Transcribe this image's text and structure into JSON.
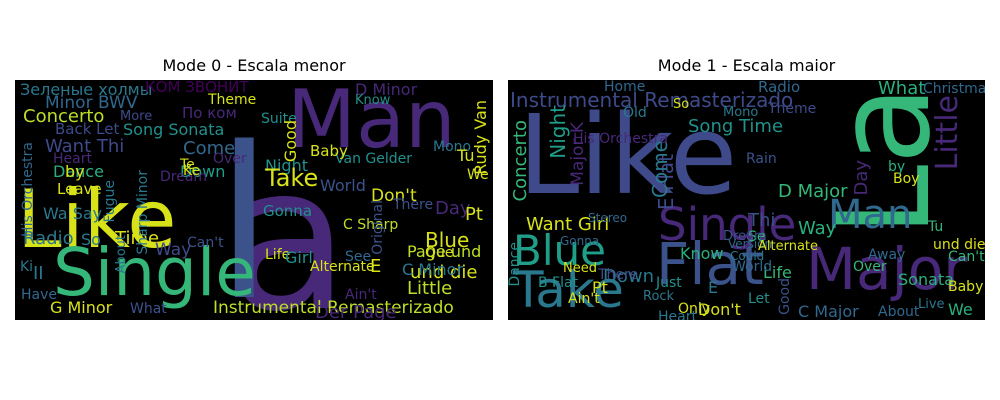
{
  "panels": [
    {
      "title": "Mode 0 - Escala menor",
      "words": [
        {
          "t": "a",
          "c": "#482878"
        },
        {
          "t": "Like",
          "c": "#d8e219"
        },
        {
          "t": "l",
          "c": "#3b528b"
        },
        {
          "t": "Single",
          "c": "#35b779"
        },
        {
          "t": "Man",
          "c": "#482878"
        },
        {
          "t": "Instrumental Remasterizado",
          "c": "#bddf26"
        },
        {
          "t": "Зеленые холмы",
          "c": "#2a788e"
        },
        {
          "t": "КОМ ЗВОНИТ",
          "c": "#44015a"
        },
        {
          "t": "Minor BWV",
          "c": "#31688e"
        },
        {
          "t": "Concerto",
          "c": "#bddf26"
        },
        {
          "t": "Song Sonata",
          "c": "#21918c"
        },
        {
          "t": "Want Thi",
          "c": "#3e4a89"
        },
        {
          "t": "Come",
          "c": "#31688e"
        },
        {
          "t": "Dance",
          "c": "#2ab07f"
        },
        {
          "t": "Down",
          "c": "#1f9e89"
        },
        {
          "t": "Theme",
          "c": "#d8e219"
        },
        {
          "t": "Night",
          "c": "#21918c"
        },
        {
          "t": "Take",
          "c": "#d8e219"
        },
        {
          "t": "World",
          "c": "#3b528b"
        },
        {
          "t": "Don't",
          "c": "#d8e219"
        },
        {
          "t": "Blue",
          "c": "#d8e219"
        },
        {
          "t": "Page und",
          "c": "#bddf26"
        },
        {
          "t": "und die",
          "c": "#d8e219"
        },
        {
          "t": "Der Page",
          "c": "#482878"
        },
        {
          "t": "Little",
          "c": "#bddf26"
        },
        {
          "t": "G Minor",
          "c": "#d8e219"
        },
        {
          "t": "Radio",
          "c": "#2a788e"
        },
        {
          "t": "Time",
          "c": "#d8e219"
        },
        {
          "t": "Way",
          "c": "#3e4a89"
        },
        {
          "t": "Life",
          "c": "#d8e219"
        },
        {
          "t": "Girl",
          "c": "#21918c"
        },
        {
          "t": "Alternate",
          "c": "#d8e219"
        },
        {
          "t": "C Minor",
          "c": "#2a788e"
        },
        {
          "t": "C Sharp",
          "c": "#bddf26"
        },
        {
          "t": "Van Gelder",
          "c": "#21918c"
        },
        {
          "t": "Baby",
          "c": "#d8e219"
        },
        {
          "t": "Rudy Van",
          "c": "#d8e219"
        },
        {
          "t": "D Minor",
          "c": "#482878"
        },
        {
          "t": "Suite",
          "c": "#21918c"
        },
        {
          "t": "Good",
          "c": "#d8e219"
        },
        {
          "t": "Day",
          "c": "#482878"
        },
        {
          "t": "Pt",
          "c": "#d8e219"
        },
        {
          "t": "Que",
          "c": "#d8e219"
        },
        {
          "t": "We",
          "c": "#d8e219"
        },
        {
          "t": "His Orchestra",
          "c": "#31688e"
        },
        {
          "t": "Leave",
          "c": "#d8e219"
        },
        {
          "t": "Fugue",
          "c": "#2a788e"
        },
        {
          "t": "Wa Say",
          "c": "#2a788e"
        },
        {
          "t": "Can't",
          "c": "#3b528b"
        },
        {
          "t": "So",
          "c": "#2a788e"
        },
        {
          "t": "E",
          "c": "#d8e219"
        },
        {
          "t": "Have",
          "c": "#31688e"
        },
        {
          "t": "What",
          "c": "#3b528b"
        },
        {
          "t": "About",
          "c": "#2a788e"
        },
        {
          "t": "Gonna",
          "c": "#21918c"
        },
        {
          "t": "There",
          "c": "#3b528b"
        },
        {
          "t": "Ain't",
          "c": "#482878"
        },
        {
          "t": "Back Let",
          "c": "#3e4a89"
        },
        {
          "t": "Heart",
          "c": "#482878"
        },
        {
          "t": "by",
          "c": "#d8e219"
        },
        {
          "t": "Dream",
          "c": "#482878"
        },
        {
          "t": "Over",
          "c": "#482878"
        },
        {
          "t": "Mono",
          "c": "#2a788e"
        },
        {
          "t": "Know",
          "c": "#21918c"
        },
        {
          "t": "Original",
          "c": "#3b528b"
        },
        {
          "t": "Te",
          "c": "#d8e219"
        },
        {
          "t": "Ke",
          "c": "#d8e219"
        },
        {
          "t": "More",
          "c": "#3e4a89"
        },
        {
          "t": "По ком",
          "c": "#482878"
        },
        {
          "t": "Sharp Minor",
          "c": "#2a788e"
        },
        {
          "t": "Ki",
          "c": "#2a788e"
        },
        {
          "t": "II",
          "c": "#2a788e"
        },
        {
          "t": "Tu",
          "c": "#d8e219"
        },
        {
          "t": "See",
          "c": "#31688e"
        }
      ]
    },
    {
      "title": "Mode 1 - Escala maior",
      "words": [
        {
          "t": "Like",
          "c": "#3e4a89"
        },
        {
          "t": "La",
          "c": "#35b779"
        },
        {
          "t": "Flat",
          "c": "#3b528b"
        },
        {
          "t": "Major",
          "c": "#482878"
        },
        {
          "t": "Take",
          "c": "#2a788e"
        },
        {
          "t": "Blue",
          "c": "#1f9e89"
        },
        {
          "t": "Single",
          "c": "#482878"
        },
        {
          "t": "Man",
          "c": "#31688e"
        },
        {
          "t": "Little",
          "c": "#482878"
        },
        {
          "t": "Instrumental Remasterizado",
          "c": "#3e4a89"
        },
        {
          "t": "Night",
          "c": "#1f9e89"
        },
        {
          "t": "Concerto",
          "c": "#35b779"
        },
        {
          "t": "Major K",
          "c": "#482878"
        },
        {
          "t": "E Flat",
          "c": "#3e4a89"
        },
        {
          "t": "Come",
          "c": "#2a788e"
        },
        {
          "t": "Song Time",
          "c": "#21918c"
        },
        {
          "t": "Want Girl",
          "c": "#d8e219"
        },
        {
          "t": "D Major",
          "c": "#35b779"
        },
        {
          "t": "Way",
          "c": "#2ab07f"
        },
        {
          "t": "Day",
          "c": "#482878"
        },
        {
          "t": "Thi",
          "c": "#3b528b"
        },
        {
          "t": "What",
          "c": "#2ab07f"
        },
        {
          "t": "Christmas",
          "c": "#31688e"
        },
        {
          "t": "Theme",
          "c": "#3e4a89"
        },
        {
          "t": "Mono",
          "c": "#2a788e"
        },
        {
          "t": "Radio",
          "c": "#31688e"
        },
        {
          "t": "Rain",
          "c": "#3b528b"
        },
        {
          "t": "Down",
          "c": "#2a788e"
        },
        {
          "t": "Sonata",
          "c": "#2ab07f"
        },
        {
          "t": "Baby",
          "c": "#d8e219"
        },
        {
          "t": "We",
          "c": "#2ab07f"
        },
        {
          "t": "Don't",
          "c": "#d8e219"
        },
        {
          "t": "C Major",
          "c": "#31688e"
        },
        {
          "t": "Good",
          "c": "#3b528b"
        },
        {
          "t": "Heart",
          "c": "#2a788e"
        },
        {
          "t": "Let",
          "c": "#21918c"
        },
        {
          "t": "Life",
          "c": "#35b779"
        },
        {
          "t": "World",
          "c": "#31688e"
        },
        {
          "t": "Know",
          "c": "#2ab07f"
        },
        {
          "t": "Need",
          "c": "#d8e219"
        },
        {
          "t": "Dance",
          "c": "#21918c"
        },
        {
          "t": "B Flat",
          "c": "#21918c"
        },
        {
          "t": "Gonna",
          "c": "#31688e"
        },
        {
          "t": "Pt",
          "c": "#d8e219"
        },
        {
          "t": "Ain't",
          "c": "#d8e219"
        },
        {
          "t": "Over",
          "c": "#35b779"
        },
        {
          "t": "About",
          "c": "#31688e"
        },
        {
          "t": "und die",
          "c": "#d8e219"
        },
        {
          "t": "Can't",
          "c": "#35b779"
        },
        {
          "t": "Tu",
          "c": "#35b779"
        },
        {
          "t": "Boy",
          "c": "#d8e219"
        },
        {
          "t": "by",
          "c": "#2ab07f"
        },
        {
          "t": "Away",
          "c": "#31688e"
        },
        {
          "t": "Se",
          "c": "#35b779"
        },
        {
          "t": "Home",
          "c": "#31688e"
        },
        {
          "t": "Old",
          "c": "#2a788e"
        },
        {
          "t": "So",
          "c": "#d8e219"
        },
        {
          "t": "His Orchestra",
          "c": "#482878"
        },
        {
          "t": "Just",
          "c": "#21918c"
        },
        {
          "t": "There",
          "c": "#3e4a89"
        },
        {
          "t": "Only",
          "c": "#d8e219"
        },
        {
          "t": "Dream",
          "c": "#3b528b"
        },
        {
          "t": "Rock",
          "c": "#2a788e"
        },
        {
          "t": "Stereo",
          "c": "#31688e"
        },
        {
          "t": "Version",
          "c": "#31688e"
        },
        {
          "t": "Could",
          "c": "#2a788e"
        },
        {
          "t": "Alternate",
          "c": "#d8e219"
        },
        {
          "t": "Live",
          "c": "#2a788e"
        },
        {
          "t": "E",
          "c": "#2a788e"
        }
      ]
    }
  ]
}
